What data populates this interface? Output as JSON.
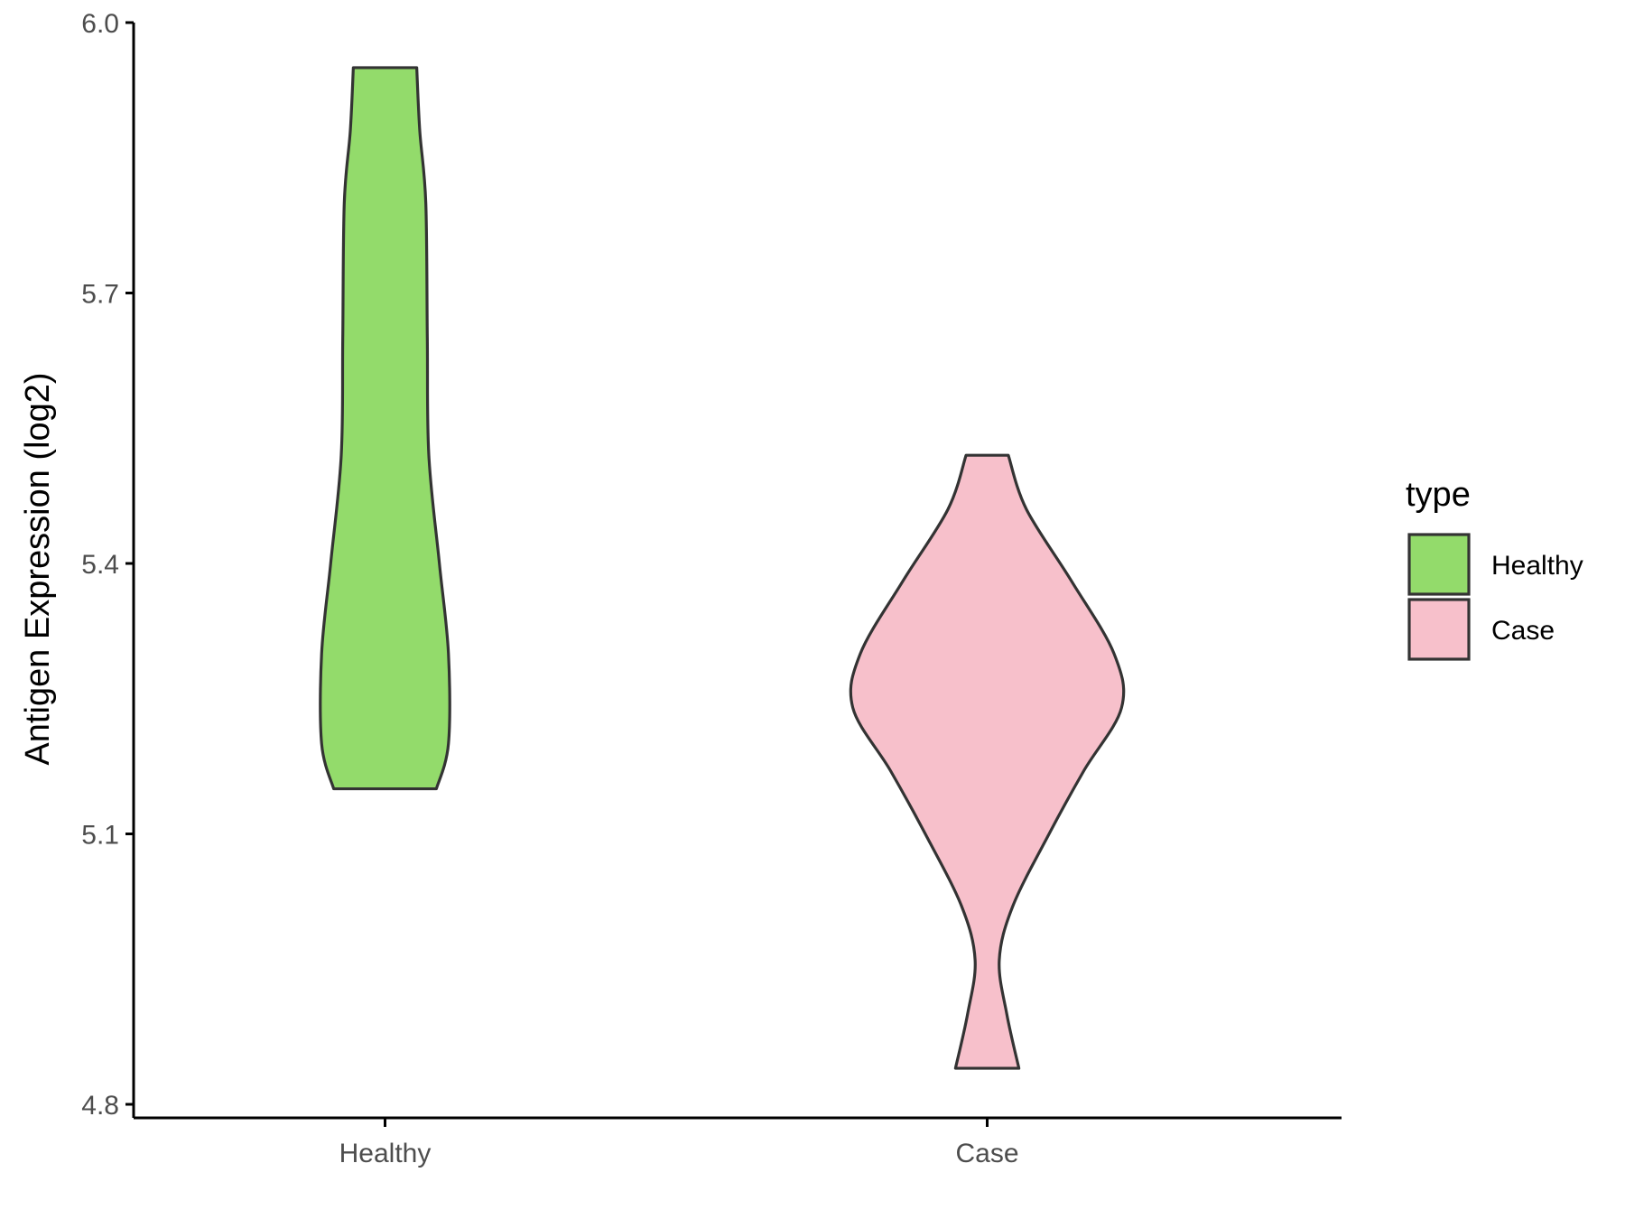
{
  "chart_data": {
    "type": "violin",
    "title": "",
    "xlabel": "",
    "ylabel": "Antigen Expression (log2)",
    "ylim": [
      4.8,
      6.0
    ],
    "yticks": [
      "4.8",
      "5.1",
      "5.4",
      "5.7",
      "6.0"
    ],
    "categories": [
      "Healthy",
      "Case"
    ],
    "grid": false,
    "legend": {
      "title": "type",
      "position": "right",
      "entries": [
        {
          "label": "Healthy",
          "color": "#93DB6B"
        },
        {
          "label": "Case",
          "color": "#F7C0CB"
        }
      ]
    },
    "series": [
      {
        "name": "Healthy",
        "color": "#93DB6B",
        "min": 5.15,
        "max": 5.95,
        "density_profile": [
          {
            "y": 5.15,
            "half_width": 0.34
          },
          {
            "y": 5.2,
            "half_width": 0.42
          },
          {
            "y": 5.3,
            "half_width": 0.42
          },
          {
            "y": 5.4,
            "half_width": 0.36
          },
          {
            "y": 5.52,
            "half_width": 0.29
          },
          {
            "y": 5.65,
            "half_width": 0.28
          },
          {
            "y": 5.8,
            "half_width": 0.27
          },
          {
            "y": 5.88,
            "half_width": 0.23
          },
          {
            "y": 5.95,
            "half_width": 0.21
          }
        ]
      },
      {
        "name": "Case",
        "color": "#F7C0CB",
        "min": 4.84,
        "max": 5.52,
        "density_profile": [
          {
            "y": 4.84,
            "half_width": 0.21
          },
          {
            "y": 4.9,
            "half_width": 0.13
          },
          {
            "y": 4.96,
            "half_width": 0.08
          },
          {
            "y": 5.02,
            "half_width": 0.17
          },
          {
            "y": 5.1,
            "half_width": 0.41
          },
          {
            "y": 5.17,
            "half_width": 0.64
          },
          {
            "y": 5.24,
            "half_width": 0.89
          },
          {
            "y": 5.3,
            "half_width": 0.84
          },
          {
            "y": 5.38,
            "half_width": 0.56
          },
          {
            "y": 5.46,
            "half_width": 0.26
          },
          {
            "y": 5.52,
            "half_width": 0.14
          }
        ]
      }
    ],
    "outline_color": "#333333"
  }
}
